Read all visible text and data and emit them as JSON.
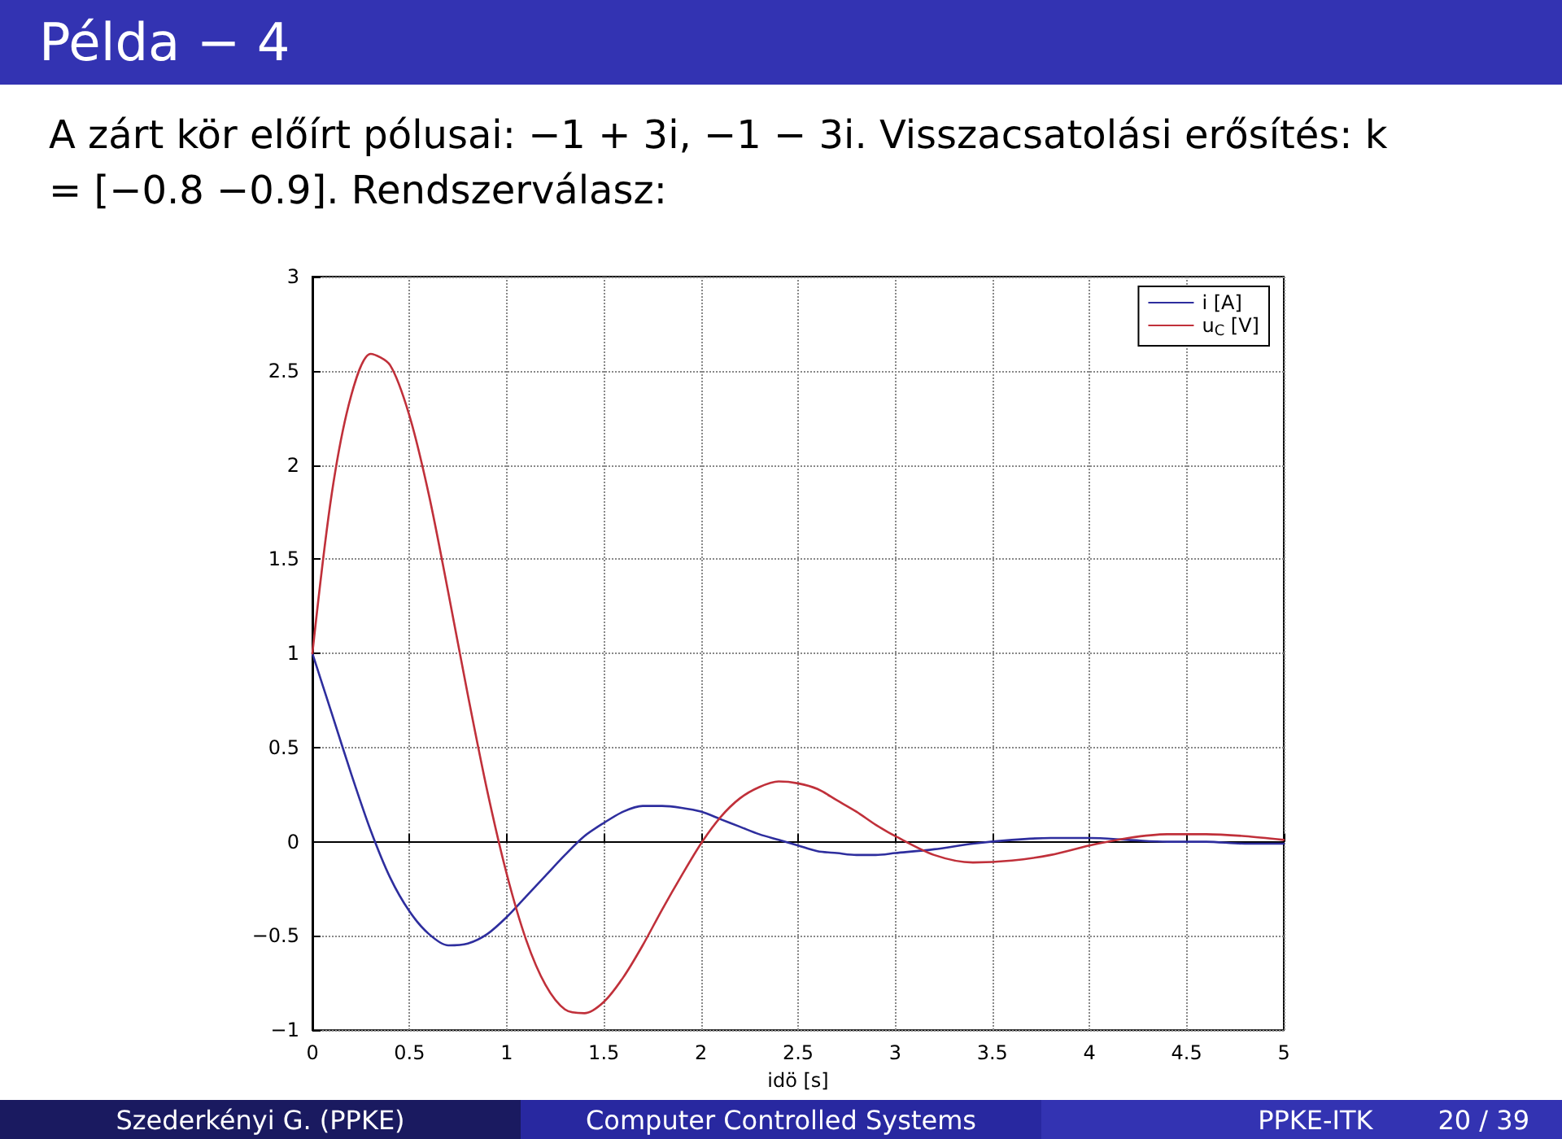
{
  "chart_data": {
    "type": "line",
    "title": "Példa − 4",
    "subtitle": "A zárt kör előírt pólusai: −1 + 3i,  −1 − 3i. Visszacsatolási erősítés: k = [−0.8   −0.9]. Rendszerválasz:",
    "xlabel": "idö [s]",
    "x": [
      0,
      0.1,
      0.2,
      0.3,
      0.4,
      0.5,
      0.6,
      0.7,
      0.8,
      0.9,
      1.0,
      1.1,
      1.2,
      1.3,
      1.4,
      1.5,
      1.6,
      1.7,
      1.8,
      1.9,
      2.0,
      2.1,
      2.2,
      2.3,
      2.4,
      2.5,
      2.6,
      2.7,
      2.8,
      2.9,
      3.0,
      3.2,
      3.4,
      3.6,
      3.8,
      4.0,
      4.2,
      4.4,
      4.6,
      4.8,
      5.0
    ],
    "series": [
      {
        "name": "i [A]",
        "color": "#2e2e9e",
        "values": [
          1,
          0.68,
          0.36,
          0.06,
          -0.19,
          -0.37,
          -0.49,
          -0.55,
          -0.54,
          -0.49,
          -0.4,
          -0.29,
          -0.18,
          -0.07,
          0.03,
          0.1,
          0.16,
          0.19,
          0.19,
          0.18,
          0.16,
          0.12,
          0.08,
          0.04,
          0.01,
          -0.02,
          -0.05,
          -0.06,
          -0.07,
          -0.07,
          -0.06,
          -0.04,
          -0.01,
          0.01,
          0.02,
          0.02,
          0.01,
          0,
          0,
          -0.01,
          -0.01
        ]
      },
      {
        "name": "u$_{C}$ [V]",
        "color": "#c0303a",
        "values": [
          1,
          1.85,
          2.37,
          2.59,
          2.53,
          2.26,
          1.84,
          1.32,
          0.78,
          0.27,
          -0.17,
          -0.52,
          -0.76,
          -0.89,
          -0.91,
          -0.85,
          -0.72,
          -0.55,
          -0.36,
          -0.18,
          -0.01,
          0.13,
          0.23,
          0.29,
          0.32,
          0.31,
          0.28,
          0.22,
          0.16,
          0.09,
          0.03,
          -0.07,
          -0.11,
          -0.1,
          -0.07,
          -0.02,
          0.02,
          0.04,
          0.04,
          0.03,
          0.01
        ]
      }
    ],
    "xlim": [
      0,
      5
    ],
    "xticks": [
      0,
      0.5,
      1,
      1.5,
      2,
      2.5,
      3,
      3.5,
      4,
      4.5,
      5
    ],
    "ylim": [
      -1,
      3
    ],
    "yticks": [
      -1,
      -0.5,
      0,
      0.5,
      1,
      1.5,
      2,
      2.5,
      3
    ],
    "grid": true,
    "legend": "top right",
    "marker": "none",
    "line_style": "solid",
    "annotations": [
      "Szederkényi G.  (PPKE)",
      "Computer Controlled Systems",
      "PPKE-ITK",
      "20 / 39"
    ]
  }
}
